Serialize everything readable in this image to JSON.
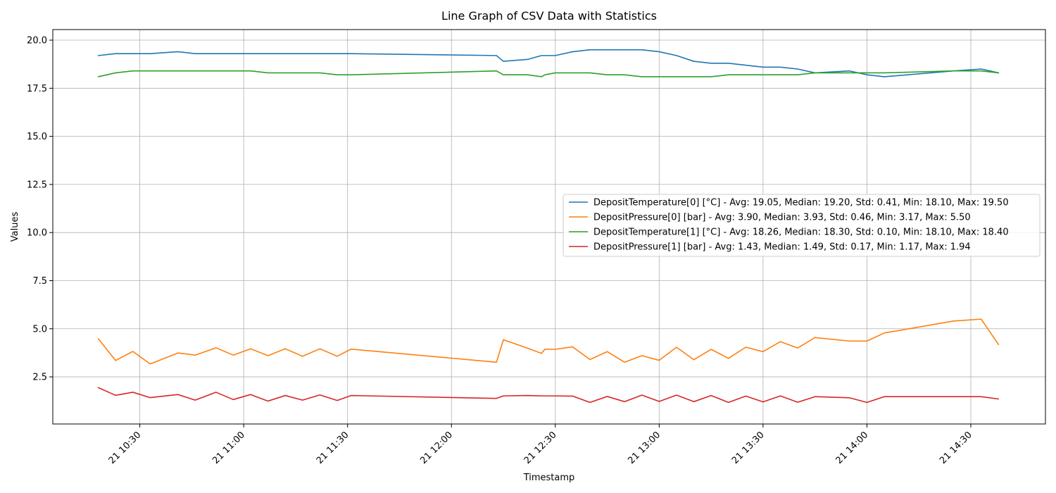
{
  "chart_data": {
    "type": "line",
    "title": "Line Graph of CSV Data with Statistics",
    "xlabel": "Timestamp",
    "ylabel": "Values",
    "ylim": [
      0.05,
      20.55
    ],
    "grid": true,
    "legend_position": "center-right",
    "x_tick_labels": [
      "21 10:30",
      "21 11:00",
      "21 11:30",
      "21 12:00",
      "21 12:30",
      "21 13:00",
      "21 13:30",
      "21 14:00",
      "21 14:30"
    ],
    "x_tick_values": [
      "10:30",
      "11:00",
      "11:30",
      "12:00",
      "12:30",
      "13:00",
      "13:30",
      "14:00",
      "14:30"
    ],
    "y_tick_labels": [
      "2.5",
      "5.0",
      "7.5",
      "10.0",
      "12.5",
      "15.0",
      "17.5",
      "20.0"
    ],
    "y_tick_values": [
      2.5,
      5.0,
      7.5,
      10.0,
      12.5,
      15.0,
      17.5,
      20.0
    ],
    "x": [
      "10:18",
      "10:23",
      "10:28",
      "10:33",
      "10:41",
      "10:46",
      "10:52",
      "10:57",
      "11:02",
      "11:07",
      "11:12",
      "11:17",
      "11:22",
      "11:27",
      "11:31",
      "12:13",
      "12:15",
      "12:22",
      "12:26",
      "12:27",
      "12:30",
      "12:35",
      "12:40",
      "12:45",
      "12:50",
      "12:55",
      "13:00",
      "13:05",
      "13:10",
      "13:15",
      "13:20",
      "13:25",
      "13:30",
      "13:35",
      "13:40",
      "13:45",
      "13:55",
      "14:00",
      "14:05",
      "14:25",
      "14:33",
      "14:38"
    ],
    "series": [
      {
        "name": "DepositTemperature[0] [°C] - Avg: 19.05, Median: 19.20, Std: 0.41, Min: 18.10, Max: 19.50",
        "color": "#1f77b4",
        "values": [
          19.2,
          19.3,
          19.3,
          19.3,
          19.4,
          19.3,
          19.3,
          19.3,
          19.3,
          19.3,
          19.3,
          19.3,
          19.3,
          19.3,
          19.3,
          19.2,
          18.9,
          19.0,
          19.2,
          19.2,
          19.2,
          19.4,
          19.5,
          19.5,
          19.5,
          19.5,
          19.4,
          19.2,
          18.9,
          18.8,
          18.8,
          18.7,
          18.6,
          18.6,
          18.5,
          18.3,
          18.4,
          18.2,
          18.1,
          18.4,
          18.5,
          18.3
        ]
      },
      {
        "name": "DepositPressure[0] [bar] - Avg: 3.90, Median: 3.93, Std: 0.46, Min: 3.17, Max: 5.50",
        "color": "#ff7f0e",
        "values": [
          4.48,
          3.35,
          3.82,
          3.17,
          3.74,
          3.63,
          4.01,
          3.63,
          3.96,
          3.6,
          3.96,
          3.57,
          3.96,
          3.57,
          3.94,
          3.26,
          4.43,
          3.99,
          3.72,
          3.94,
          3.93,
          4.06,
          3.4,
          3.81,
          3.26,
          3.6,
          3.36,
          4.04,
          3.39,
          3.93,
          3.46,
          4.04,
          3.81,
          4.33,
          4.0,
          4.54,
          4.36,
          4.36,
          4.78,
          5.4,
          5.5,
          4.18
        ]
      },
      {
        "name": "DepositTemperature[1] [°C] - Avg: 18.26, Median: 18.30, Std: 0.10, Min: 18.10, Max: 18.40",
        "color": "#2ca02c",
        "values": [
          18.1,
          18.3,
          18.4,
          18.4,
          18.4,
          18.4,
          18.4,
          18.4,
          18.4,
          18.3,
          18.3,
          18.3,
          18.3,
          18.2,
          18.2,
          18.4,
          18.2,
          18.2,
          18.1,
          18.2,
          18.3,
          18.3,
          18.3,
          18.2,
          18.2,
          18.1,
          18.1,
          18.1,
          18.1,
          18.1,
          18.2,
          18.2,
          18.2,
          18.2,
          18.2,
          18.3,
          18.3,
          18.3,
          18.3,
          18.4,
          18.4,
          18.3
        ]
      },
      {
        "name": "DepositPressure[1] [bar] - Avg: 1.43, Median: 1.49, Std: 0.17, Min: 1.17, Max: 1.94",
        "color": "#d62728",
        "values": [
          1.94,
          1.54,
          1.7,
          1.42,
          1.58,
          1.29,
          1.7,
          1.32,
          1.58,
          1.24,
          1.53,
          1.29,
          1.56,
          1.27,
          1.53,
          1.38,
          1.51,
          1.53,
          1.51,
          1.51,
          1.51,
          1.5,
          1.17,
          1.48,
          1.21,
          1.55,
          1.22,
          1.55,
          1.21,
          1.53,
          1.17,
          1.5,
          1.2,
          1.51,
          1.18,
          1.47,
          1.41,
          1.17,
          1.47,
          1.47,
          1.47,
          1.35
        ]
      }
    ]
  }
}
